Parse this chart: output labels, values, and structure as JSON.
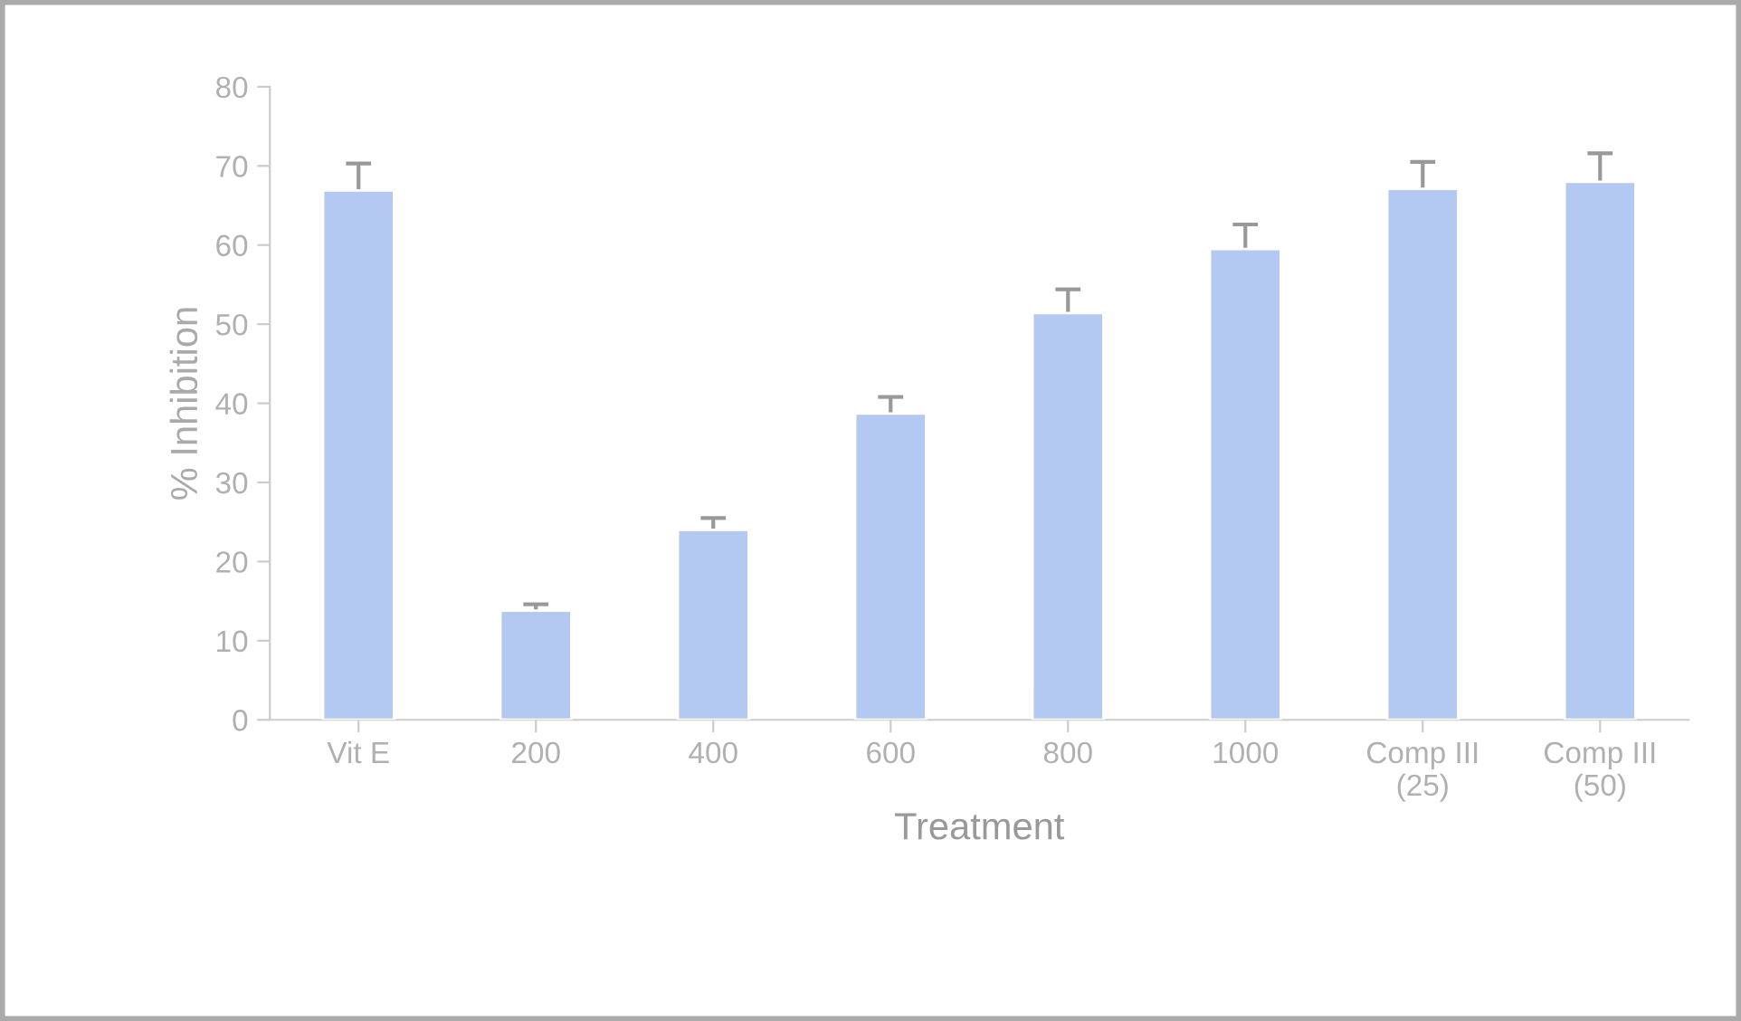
{
  "chart_data": {
    "type": "bar",
    "xlabel": "Treatment",
    "ylabel": "% Inhibition",
    "categories": [
      "Vit E",
      "200",
      "400",
      "600",
      "800",
      "1000",
      "Comp III\n(25)",
      "Comp III\n(50)"
    ],
    "values": [
      66.9,
      13.8,
      24.0,
      38.7,
      51.4,
      59.5,
      67.1,
      68.0
    ],
    "errors": [
      3.4,
      0.8,
      1.5,
      2.1,
      3.0,
      3.1,
      3.4,
      3.6
    ],
    "color": "#b4c9f2",
    "ylim": [
      0,
      80
    ],
    "yticks": [
      0,
      10,
      20,
      30,
      40,
      50,
      60,
      70,
      80
    ],
    "grid": false,
    "legend": false
  }
}
